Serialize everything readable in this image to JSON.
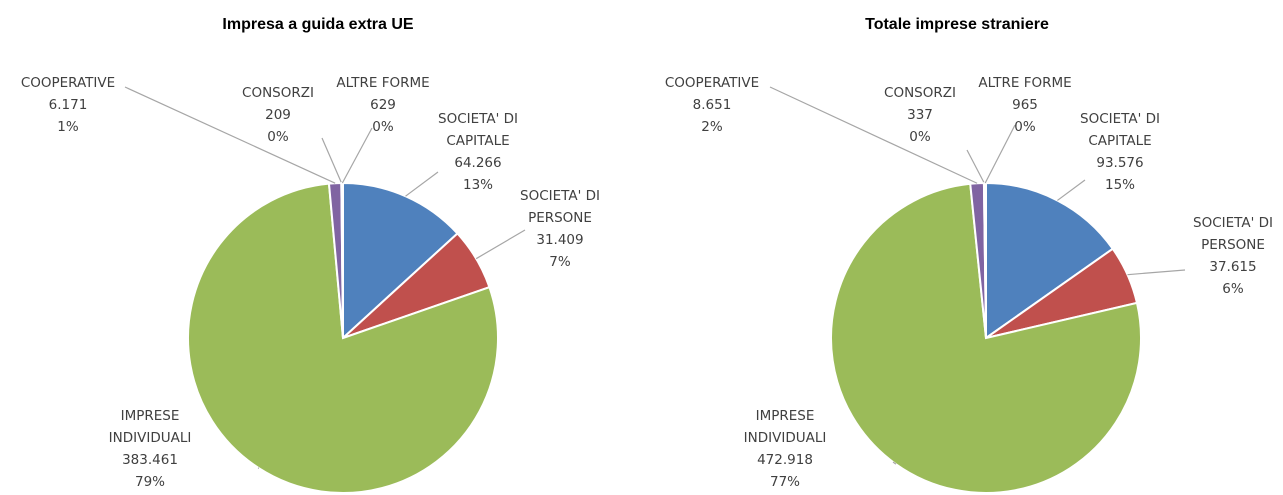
{
  "chart_data": [
    {
      "type": "pie",
      "title": "Impresa a guida extra UE",
      "categories": [
        "SOCIETA' DI CAPITALE",
        "SOCIETA' DI PERSONE",
        "IMPRESE INDIVIDUALI",
        "COOPERATIVE",
        "CONSORZI",
        "ALTRE FORME"
      ],
      "values": [
        64266,
        31409,
        383461,
        6171,
        209,
        629
      ],
      "value_labels": [
        "64.266",
        "31.409",
        "383.461",
        "6.171",
        "209",
        "629"
      ],
      "percent_labels": [
        "13%",
        "7%",
        "79%",
        "1%",
        "0%",
        "0%"
      ],
      "colors": [
        "#4f81bd",
        "#c0504d",
        "#9bbb59",
        "#8064a2",
        "#4bacc6",
        "#f79646"
      ]
    },
    {
      "type": "pie",
      "title": "Totale imprese straniere",
      "categories": [
        "SOCIETA' DI CAPITALE",
        "SOCIETA' DI PERSONE",
        "IMPRESE INDIVIDUALI",
        "COOPERATIVE",
        "CONSORZI",
        "ALTRE FORME"
      ],
      "values": [
        93576,
        37615,
        472918,
        8651,
        337,
        965
      ],
      "value_labels": [
        "93.576",
        "37.615",
        "472.918",
        "8.651",
        "337",
        "965"
      ],
      "percent_labels": [
        "15%",
        "6%",
        "77%",
        "2%",
        "0%",
        "0%"
      ],
      "colors": [
        "#4f81bd",
        "#c0504d",
        "#9bbb59",
        "#8064a2",
        "#4bacc6",
        "#f79646"
      ]
    }
  ]
}
